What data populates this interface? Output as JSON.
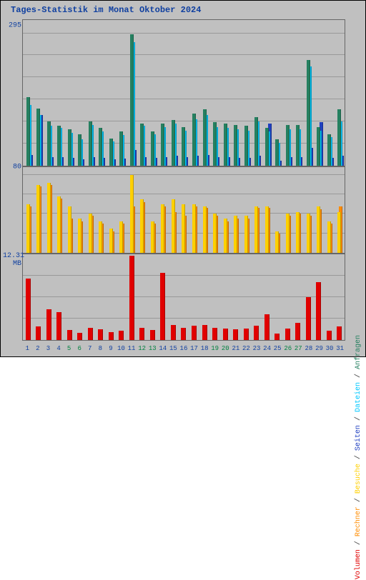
{
  "title": "Tages-Statistik im Monat Oktober 2024",
  "background_color": "#c0c0c0",
  "grid_color": "#999999",
  "title_color": "#1040a0",
  "label_color": "#1040a0",
  "days": [
    1,
    2,
    3,
    4,
    5,
    6,
    7,
    8,
    9,
    10,
    11,
    12,
    13,
    14,
    15,
    16,
    17,
    18,
    19,
    20,
    21,
    22,
    23,
    24,
    25,
    26,
    27,
    28,
    29,
    30,
    31
  ],
  "day_label_colors": [
    "#1040a0",
    "#1040a0",
    "#1040a0",
    "#1040a0",
    "#008040",
    "#008040",
    "#1040a0",
    "#1040a0",
    "#1040a0",
    "#1040a0",
    "#1040a0",
    "#008040",
    "#008040",
    "#1040a0",
    "#1040a0",
    "#1040a0",
    "#1040a0",
    "#1040a0",
    "#008040",
    "#008040",
    "#1040a0",
    "#1040a0",
    "#1040a0",
    "#1040a0",
    "#1040a0",
    "#008040",
    "#008040",
    "#1040a0",
    "#1040a0",
    "#1040a0",
    "#1040a0"
  ],
  "panel_top": {
    "ylabel": "295",
    "ymax": 330,
    "gridlines": [
      50,
      100,
      150,
      200,
      250,
      300
    ],
    "series": [
      {
        "name": "anfragen",
        "color": "#258060",
        "values": [
          155,
          130,
          100,
          90,
          82,
          72,
          100,
          85,
          62,
          78,
          298,
          95,
          78,
          95,
          103,
          88,
          118,
          128,
          98,
          95,
          92,
          90,
          110,
          85,
          60,
          92,
          92,
          240,
          88,
          72,
          128
        ]
      },
      {
        "name": "dateien",
        "color": "#00c8ff",
        "values": [
          138,
          115,
          90,
          85,
          75,
          60,
          92,
          78,
          55,
          70,
          280,
          90,
          72,
          88,
          95,
          80,
          105,
          115,
          88,
          85,
          82,
          80,
          100,
          78,
          52,
          82,
          82,
          225,
          80,
          65,
          100
        ]
      },
      {
        "name": "seiten",
        "color": "#2040c0",
        "values": [
          25,
          115,
          20,
          20,
          18,
          15,
          20,
          18,
          15,
          16,
          35,
          20,
          18,
          20,
          22,
          20,
          22,
          25,
          20,
          20,
          18,
          18,
          22,
          95,
          12,
          20,
          20,
          40,
          98,
          18,
          22
        ]
      }
    ]
  },
  "panel_mid": {
    "ylabel": "80",
    "ymax": 88,
    "gridlines": [
      20,
      40,
      60,
      80
    ],
    "series": [
      {
        "name": "besuche",
        "color": "#ffd000",
        "values": [
          50,
          70,
          72,
          58,
          48,
          35,
          40,
          32,
          25,
          32,
          80,
          55,
          32,
          50,
          55,
          50,
          50,
          48,
          40,
          35,
          38,
          38,
          48,
          48,
          22,
          40,
          42,
          40,
          48,
          32,
          42
        ]
      },
      {
        "name": "rechner",
        "color": "#ff8c00",
        "values": [
          48,
          68,
          70,
          56,
          35,
          32,
          38,
          30,
          22,
          30,
          48,
          52,
          30,
          48,
          42,
          38,
          48,
          46,
          38,
          32,
          35,
          35,
          46,
          46,
          20,
          38,
          40,
          38,
          45,
          30,
          48
        ]
      }
    ]
  },
  "panel_bot": {
    "ylabel": "12.31 MB",
    "ymax": 14,
    "gridlines": [
      3.5,
      7,
      10.5
    ],
    "series": [
      {
        "name": "volumen",
        "color": "#e00000",
        "values": [
          10.0,
          2.2,
          5.0,
          4.5,
          1.6,
          1.2,
          2.0,
          1.7,
          1.3,
          1.5,
          13.8,
          2.0,
          1.6,
          11.0,
          2.4,
          2.0,
          2.3,
          2.5,
          2.0,
          1.9,
          1.8,
          1.9,
          2.3,
          4.2,
          1.0,
          1.9,
          2.8,
          7.0,
          9.5,
          1.5,
          2.2
        ]
      }
    ]
  },
  "legend": [
    {
      "label": "Volumen",
      "color": "#e00000"
    },
    {
      "label": "Rechner",
      "color": "#ff8c00"
    },
    {
      "label": "Besuche",
      "color": "#ffd000"
    },
    {
      "label": "Seiten",
      "color": "#2040c0"
    },
    {
      "label": "Dateien",
      "color": "#00c8ff"
    },
    {
      "label": "Anfragen",
      "color": "#258060"
    }
  ]
}
